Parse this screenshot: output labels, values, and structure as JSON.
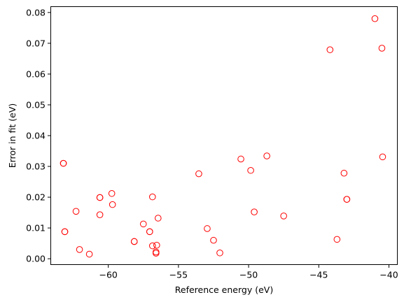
{
  "chart_data": {
    "type": "scatter",
    "title": "",
    "xlabel": "Reference energy (eV)",
    "ylabel": "Error in fit (eV)",
    "xlim": [
      -64.1,
      -39.4
    ],
    "ylim": [
      -0.0019,
      0.0819
    ],
    "xticks": [
      -60,
      -55,
      -50,
      -45,
      -40
    ],
    "xtick_labels": [
      "−60",
      "−55",
      "−50",
      "−45",
      "−40"
    ],
    "yticks": [
      0.0,
      0.01,
      0.02,
      0.03,
      0.04,
      0.05,
      0.06,
      0.07,
      0.08
    ],
    "ytick_labels": [
      "0.00",
      "0.01",
      "0.02",
      "0.03",
      "0.04",
      "0.05",
      "0.06",
      "0.07",
      "0.08"
    ],
    "grid": false,
    "marker": "hollow-circle",
    "marker_color": "#ff0000",
    "points": [
      {
        "x": -63.2,
        "y": 0.031
      },
      {
        "x": -63.2,
        "y": 0.031
      },
      {
        "x": -63.1,
        "y": 0.0088
      },
      {
        "x": -63.1,
        "y": 0.0088
      },
      {
        "x": -62.3,
        "y": 0.0154
      },
      {
        "x": -62.05,
        "y": 0.003
      },
      {
        "x": -61.35,
        "y": 0.0015
      },
      {
        "x": -60.6,
        "y": 0.0199
      },
      {
        "x": -60.6,
        "y": 0.0199
      },
      {
        "x": -60.6,
        "y": 0.0143
      },
      {
        "x": -59.75,
        "y": 0.0212
      },
      {
        "x": -59.7,
        "y": 0.0176
      },
      {
        "x": -58.15,
        "y": 0.0056
      },
      {
        "x": -58.15,
        "y": 0.0056
      },
      {
        "x": -57.5,
        "y": 0.0113
      },
      {
        "x": -57.05,
        "y": 0.0088
      },
      {
        "x": -57.05,
        "y": 0.0088
      },
      {
        "x": -56.85,
        "y": 0.0201
      },
      {
        "x": -56.85,
        "y": 0.0042
      },
      {
        "x": -56.55,
        "y": 0.0044
      },
      {
        "x": -56.6,
        "y": 0.0022
      },
      {
        "x": -56.6,
        "y": 0.0018
      },
      {
        "x": -56.45,
        "y": 0.0132
      },
      {
        "x": -53.55,
        "y": 0.0276
      },
      {
        "x": -52.95,
        "y": 0.0098
      },
      {
        "x": -52.5,
        "y": 0.006
      },
      {
        "x": -52.05,
        "y": 0.0019
      },
      {
        "x": -50.55,
        "y": 0.0324
      },
      {
        "x": -49.85,
        "y": 0.0287
      },
      {
        "x": -49.6,
        "y": 0.0152
      },
      {
        "x": -48.7,
        "y": 0.0334
      },
      {
        "x": -47.5,
        "y": 0.0139
      },
      {
        "x": -44.2,
        "y": 0.0679
      },
      {
        "x": -43.7,
        "y": 0.0063
      },
      {
        "x": -43.2,
        "y": 0.0278
      },
      {
        "x": -43.0,
        "y": 0.0193
      },
      {
        "x": -43.0,
        "y": 0.0193
      },
      {
        "x": -41.0,
        "y": 0.078
      },
      {
        "x": -40.5,
        "y": 0.0684
      },
      {
        "x": -40.45,
        "y": 0.0331
      }
    ]
  }
}
